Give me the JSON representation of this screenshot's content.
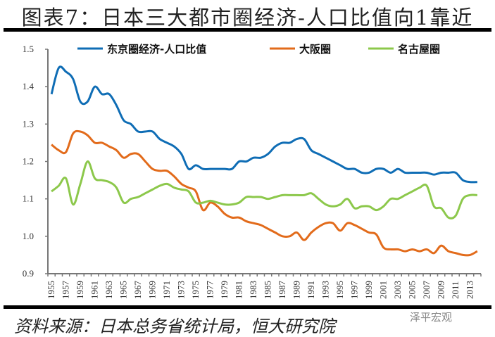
{
  "header": {
    "title": "图表7：日本三大都市圈经济-人口比值向1靠近"
  },
  "footer": {
    "source": "资料来源：日本总务省统计局，恒大研究院",
    "watermark": "泽平宏观"
  },
  "chart_data": {
    "type": "line",
    "title": "",
    "xlabel": "",
    "ylabel": "",
    "ylim": [
      0.9,
      1.5
    ],
    "yticks": [
      "1.5",
      "1.4",
      "1.3",
      "1.2",
      "1.1",
      "1.0",
      "0.9"
    ],
    "grid": false,
    "legend": "top",
    "x": [
      1955,
      1956,
      1957,
      1958,
      1959,
      1960,
      1961,
      1962,
      1963,
      1964,
      1965,
      1966,
      1967,
      1968,
      1969,
      1970,
      1971,
      1972,
      1973,
      1974,
      1975,
      1976,
      1977,
      1978,
      1979,
      1980,
      1981,
      1982,
      1983,
      1984,
      1985,
      1986,
      1987,
      1988,
      1989,
      1990,
      1991,
      1992,
      1993,
      1994,
      1995,
      1996,
      1997,
      1998,
      1999,
      2000,
      2001,
      2002,
      2003,
      2004,
      2005,
      2006,
      2007,
      2008,
      2009,
      2010,
      2011,
      2012,
      2013,
      2014
    ],
    "xtick_labels": [
      "1955",
      "1957",
      "1959",
      "1961",
      "1963",
      "1965",
      "1967",
      "1969",
      "1971",
      "1973",
      "1975",
      "1977",
      "1979",
      "1981",
      "1983",
      "1985",
      "1987",
      "1989",
      "1991",
      "1993",
      "1995",
      "1997",
      "1999",
      "2001",
      "2003",
      "2005",
      "2007",
      "2009",
      "2011",
      "2013"
    ],
    "series": [
      {
        "name": "东京圈经济-人口比值",
        "color": "#0f6db5",
        "values": [
          1.38,
          1.45,
          1.44,
          1.42,
          1.36,
          1.36,
          1.4,
          1.38,
          1.38,
          1.35,
          1.31,
          1.3,
          1.28,
          1.28,
          1.28,
          1.26,
          1.25,
          1.24,
          1.22,
          1.18,
          1.19,
          1.18,
          1.18,
          1.18,
          1.18,
          1.18,
          1.2,
          1.2,
          1.21,
          1.21,
          1.22,
          1.24,
          1.25,
          1.25,
          1.26,
          1.26,
          1.23,
          1.22,
          1.21,
          1.2,
          1.19,
          1.18,
          1.18,
          1.17,
          1.17,
          1.18,
          1.18,
          1.17,
          1.18,
          1.17,
          1.17,
          1.17,
          1.17,
          1.165,
          1.17,
          1.17,
          1.17,
          1.15,
          1.145,
          1.145
        ]
      },
      {
        "name": "大阪圈",
        "color": "#e26b1b",
        "values": [
          1.245,
          1.23,
          1.225,
          1.275,
          1.28,
          1.27,
          1.25,
          1.25,
          1.24,
          1.23,
          1.21,
          1.22,
          1.22,
          1.2,
          1.18,
          1.175,
          1.175,
          1.16,
          1.14,
          1.13,
          1.12,
          1.07,
          1.09,
          1.08,
          1.06,
          1.05,
          1.05,
          1.04,
          1.035,
          1.03,
          1.02,
          1.01,
          1.0,
          1.0,
          1.01,
          0.99,
          1.01,
          1.025,
          1.035,
          1.035,
          1.015,
          1.035,
          1.03,
          1.02,
          1.01,
          1.005,
          0.97,
          0.965,
          0.965,
          0.96,
          0.965,
          0.96,
          0.965,
          0.955,
          0.975,
          0.96,
          0.955,
          0.95,
          0.95,
          0.96
        ]
      },
      {
        "name": "名古屋圈",
        "color": "#8cc84b",
        "values": [
          1.12,
          1.135,
          1.155,
          1.085,
          1.14,
          1.2,
          1.155,
          1.15,
          1.145,
          1.13,
          1.09,
          1.1,
          1.105,
          1.115,
          1.125,
          1.135,
          1.14,
          1.13,
          1.125,
          1.12,
          1.09,
          1.09,
          1.095,
          1.09,
          1.085,
          1.085,
          1.09,
          1.105,
          1.105,
          1.105,
          1.1,
          1.105,
          1.11,
          1.11,
          1.11,
          1.11,
          1.115,
          1.1,
          1.085,
          1.08,
          1.085,
          1.1,
          1.075,
          1.08,
          1.08,
          1.07,
          1.08,
          1.1,
          1.1,
          1.11,
          1.12,
          1.13,
          1.135,
          1.08,
          1.075,
          1.05,
          1.055,
          1.1,
          1.11,
          1.11
        ]
      }
    ]
  }
}
